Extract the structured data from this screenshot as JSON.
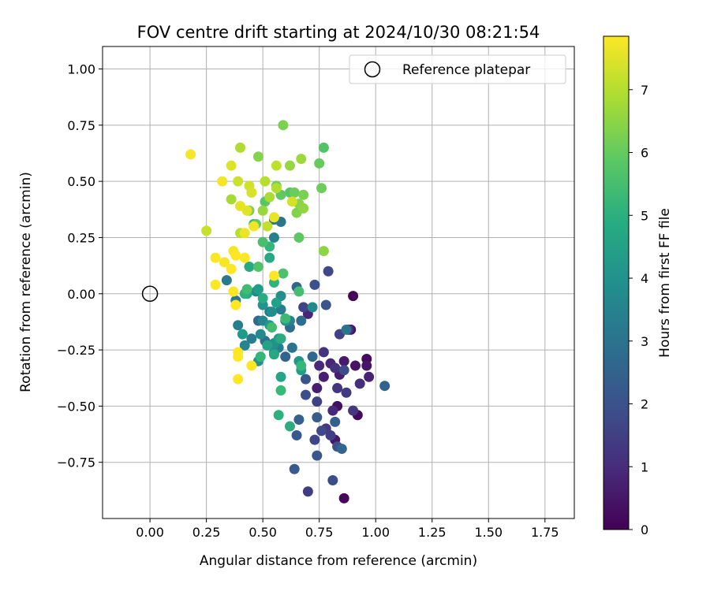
{
  "chart_data": {
    "type": "scatter",
    "title": "FOV centre drift starting at 2024/10/30 08:21:54",
    "xlabel": "Angular distance from reference (arcmin)",
    "ylabel": "Rotation from reference (arcmin)",
    "xlim": [
      -0.21,
      1.88
    ],
    "ylim": [
      -1.0,
      1.1
    ],
    "xticks": [
      "0.00",
      "0.25",
      "0.50",
      "0.75",
      "1.00",
      "1.25",
      "1.50",
      "1.75"
    ],
    "yticks": [
      "−0.75",
      "−0.50",
      "−0.25",
      "0.00",
      "0.25",
      "0.50",
      "0.75",
      "1.00"
    ],
    "grid": true,
    "legend_position": "top-right",
    "legend": [
      {
        "label": "Reference platepar",
        "marker": "open-circle"
      }
    ],
    "reference_point": {
      "x": 0.0,
      "y": 0.0
    },
    "colorbar": {
      "label": "Hours from first FF file",
      "colormap": "viridis",
      "min": 0,
      "max": 7.85,
      "ticks": [
        "0",
        "1",
        "2",
        "3",
        "4",
        "5",
        "6",
        "7"
      ]
    },
    "points": [
      {
        "x": 0.9,
        "y": -0.01,
        "h": 0.1
      },
      {
        "x": 0.86,
        "y": -0.91,
        "h": 0.15
      },
      {
        "x": 0.92,
        "y": -0.54,
        "h": 0.2
      },
      {
        "x": 0.96,
        "y": -0.29,
        "h": 0.25
      },
      {
        "x": 0.83,
        "y": -0.5,
        "h": 0.3
      },
      {
        "x": 0.89,
        "y": -0.16,
        "h": 0.35
      },
      {
        "x": 0.91,
        "y": -0.32,
        "h": 0.4
      },
      {
        "x": 0.96,
        "y": -0.32,
        "h": 0.45
      },
      {
        "x": 0.82,
        "y": -0.65,
        "h": 0.5
      },
      {
        "x": 0.86,
        "y": -0.3,
        "h": 0.55
      },
      {
        "x": 0.84,
        "y": -0.36,
        "h": 0.6
      },
      {
        "x": 0.74,
        "y": -0.42,
        "h": 0.65
      },
      {
        "x": 0.77,
        "y": -0.37,
        "h": 0.7
      },
      {
        "x": 0.97,
        "y": -0.37,
        "h": 0.75
      },
      {
        "x": 0.7,
        "y": -0.09,
        "h": 0.8
      },
      {
        "x": 0.8,
        "y": -0.31,
        "h": 0.85
      },
      {
        "x": 0.81,
        "y": -0.52,
        "h": 0.9
      },
      {
        "x": 0.75,
        "y": -0.32,
        "h": 0.95
      },
      {
        "x": 0.88,
        "y": -0.16,
        "h": 1.0
      },
      {
        "x": 0.93,
        "y": -0.4,
        "h": 1.05
      },
      {
        "x": 0.82,
        "y": -0.33,
        "h": 1.1
      },
      {
        "x": 0.77,
        "y": -0.26,
        "h": 1.15
      },
      {
        "x": 0.83,
        "y": -0.42,
        "h": 1.2
      },
      {
        "x": 0.9,
        "y": -0.52,
        "h": 1.25
      },
      {
        "x": 0.78,
        "y": -0.6,
        "h": 1.3
      },
      {
        "x": 0.87,
        "y": -0.44,
        "h": 1.35
      },
      {
        "x": 0.7,
        "y": -0.88,
        "h": 1.4
      },
      {
        "x": 0.8,
        "y": -0.63,
        "h": 1.45
      },
      {
        "x": 0.74,
        "y": -0.48,
        "h": 1.5
      },
      {
        "x": 0.84,
        "y": -0.18,
        "h": 1.55
      },
      {
        "x": 0.68,
        "y": -0.06,
        "h": 1.6
      },
      {
        "x": 0.73,
        "y": -0.65,
        "h": 1.65
      },
      {
        "x": 0.79,
        "y": 0.1,
        "h": 1.7
      },
      {
        "x": 0.76,
        "y": -0.61,
        "h": 1.75
      },
      {
        "x": 0.86,
        "y": -0.34,
        "h": 1.8
      },
      {
        "x": 0.81,
        "y": -0.83,
        "h": 1.85
      },
      {
        "x": 0.69,
        "y": -0.45,
        "h": 1.9
      },
      {
        "x": 0.73,
        "y": 0.04,
        "h": 1.95
      },
      {
        "x": 0.83,
        "y": -0.68,
        "h": 2.0
      },
      {
        "x": 0.78,
        "y": -0.05,
        "h": 2.05
      },
      {
        "x": 0.69,
        "y": -0.38,
        "h": 2.1
      },
      {
        "x": 0.74,
        "y": -0.72,
        "h": 2.15
      },
      {
        "x": 0.65,
        "y": -0.63,
        "h": 2.2
      },
      {
        "x": 0.64,
        "y": -0.78,
        "h": 2.25
      },
      {
        "x": 0.74,
        "y": -0.55,
        "h": 2.3
      },
      {
        "x": 0.82,
        "y": -0.57,
        "h": 2.35
      },
      {
        "x": 0.66,
        "y": -0.56,
        "h": 2.4
      },
      {
        "x": 1.04,
        "y": -0.41,
        "h": 2.45
      },
      {
        "x": 0.6,
        "y": -0.28,
        "h": 2.5
      },
      {
        "x": 0.85,
        "y": -0.69,
        "h": 2.55
      },
      {
        "x": 0.65,
        "y": 0.03,
        "h": 2.6
      },
      {
        "x": 0.72,
        "y": -0.28,
        "h": 2.65
      },
      {
        "x": 0.48,
        "y": -0.12,
        "h": 2.7
      },
      {
        "x": 0.62,
        "y": -0.15,
        "h": 2.75
      },
      {
        "x": 0.67,
        "y": -0.12,
        "h": 2.8
      },
      {
        "x": 0.51,
        "y": -0.21,
        "h": 2.85
      },
      {
        "x": 0.55,
        "y": 0.33,
        "h": 2.9
      },
      {
        "x": 0.63,
        "y": -0.24,
        "h": 2.95
      },
      {
        "x": 0.87,
        "y": -0.16,
        "h": 3.0
      },
      {
        "x": 0.58,
        "y": 0.32,
        "h": 3.05
      },
      {
        "x": 0.38,
        "y": -0.03,
        "h": 3.1
      },
      {
        "x": 0.53,
        "y": -0.08,
        "h": 3.15
      },
      {
        "x": 0.34,
        "y": 0.06,
        "h": 3.2
      },
      {
        "x": 0.58,
        "y": -0.07,
        "h": 3.25
      },
      {
        "x": 0.45,
        "y": -0.2,
        "h": 3.3
      },
      {
        "x": 0.57,
        "y": -0.24,
        "h": 3.35
      },
      {
        "x": 0.39,
        "y": -0.14,
        "h": 3.4
      },
      {
        "x": 0.55,
        "y": 0.25,
        "h": 3.45
      },
      {
        "x": 0.62,
        "y": -0.12,
        "h": 3.5
      },
      {
        "x": 0.42,
        "y": -0.23,
        "h": 3.55
      },
      {
        "x": 0.5,
        "y": -0.12,
        "h": 3.6
      },
      {
        "x": 0.47,
        "y": 0.01,
        "h": 3.65
      },
      {
        "x": 0.72,
        "y": -0.06,
        "h": 3.7
      },
      {
        "x": 0.49,
        "y": -0.18,
        "h": 3.75
      },
      {
        "x": 0.55,
        "y": -0.26,
        "h": 3.8
      },
      {
        "x": 0.58,
        "y": -0.01,
        "h": 3.85
      },
      {
        "x": 0.54,
        "y": -0.08,
        "h": 3.9
      },
      {
        "x": 0.55,
        "y": -0.22,
        "h": 3.95
      },
      {
        "x": 0.48,
        "y": -0.3,
        "h": 4.0
      },
      {
        "x": 0.5,
        "y": -0.05,
        "h": 4.05
      },
      {
        "x": 0.6,
        "y": -0.12,
        "h": 4.1
      },
      {
        "x": 0.66,
        "y": -0.3,
        "h": 4.15
      },
      {
        "x": 0.53,
        "y": -0.14,
        "h": 4.2
      },
      {
        "x": 0.57,
        "y": -0.2,
        "h": 4.25
      },
      {
        "x": 0.41,
        "y": -0.18,
        "h": 4.3
      },
      {
        "x": 0.67,
        "y": -0.34,
        "h": 4.35
      },
      {
        "x": 0.48,
        "y": 0.02,
        "h": 4.4
      },
      {
        "x": 0.56,
        "y": -0.04,
        "h": 4.45
      },
      {
        "x": 0.52,
        "y": -0.23,
        "h": 4.5
      },
      {
        "x": 0.43,
        "y": 0.0,
        "h": 4.55
      },
      {
        "x": 0.58,
        "y": -0.37,
        "h": 4.6
      },
      {
        "x": 0.55,
        "y": -0.27,
        "h": 4.65
      },
      {
        "x": 0.53,
        "y": 0.16,
        "h": 4.7
      },
      {
        "x": 0.44,
        "y": 0.12,
        "h": 4.75
      },
      {
        "x": 0.5,
        "y": -0.02,
        "h": 4.8
      },
      {
        "x": 0.58,
        "y": -0.2,
        "h": 4.85
      },
      {
        "x": 0.62,
        "y": -0.59,
        "h": 4.9
      },
      {
        "x": 0.57,
        "y": -0.54,
        "h": 4.95
      },
      {
        "x": 0.42,
        "y": 0.0,
        "h": 5.0
      },
      {
        "x": 0.46,
        "y": 0.31,
        "h": 5.05
      },
      {
        "x": 0.55,
        "y": 0.05,
        "h": 5.1
      },
      {
        "x": 0.53,
        "y": 0.21,
        "h": 5.15
      },
      {
        "x": 0.49,
        "y": -0.28,
        "h": 5.2
      },
      {
        "x": 0.67,
        "y": -0.32,
        "h": 5.25
      },
      {
        "x": 0.58,
        "y": -0.43,
        "h": 5.3
      },
      {
        "x": 0.6,
        "y": -0.11,
        "h": 5.35
      },
      {
        "x": 0.43,
        "y": 0.02,
        "h": 5.4
      },
      {
        "x": 0.54,
        "y": -0.15,
        "h": 5.45
      },
      {
        "x": 0.66,
        "y": 0.01,
        "h": 5.5
      },
      {
        "x": 0.5,
        "y": 0.23,
        "h": 5.55
      },
      {
        "x": 0.59,
        "y": 0.09,
        "h": 5.6
      },
      {
        "x": 0.48,
        "y": 0.12,
        "h": 5.65
      },
      {
        "x": 0.77,
        "y": 0.65,
        "h": 5.7
      },
      {
        "x": 0.62,
        "y": 0.45,
        "h": 5.75
      },
      {
        "x": 0.51,
        "y": 0.41,
        "h": 5.8
      },
      {
        "x": 0.66,
        "y": 0.25,
        "h": 5.85
      },
      {
        "x": 0.58,
        "y": 0.44,
        "h": 5.9
      },
      {
        "x": 0.47,
        "y": 0.31,
        "h": 5.95
      },
      {
        "x": 0.75,
        "y": 0.58,
        "h": 6.0
      },
      {
        "x": 0.64,
        "y": 0.45,
        "h": 6.05
      },
      {
        "x": 0.76,
        "y": 0.47,
        "h": 6.1
      },
      {
        "x": 0.56,
        "y": 0.48,
        "h": 6.15
      },
      {
        "x": 0.44,
        "y": 0.37,
        "h": 6.2
      },
      {
        "x": 0.68,
        "y": 0.44,
        "h": 6.25
      },
      {
        "x": 0.59,
        "y": 0.75,
        "h": 6.3
      },
      {
        "x": 0.65,
        "y": 0.36,
        "h": 6.35
      },
      {
        "x": 0.48,
        "y": 0.61,
        "h": 6.4
      },
      {
        "x": 0.66,
        "y": 0.4,
        "h": 6.45
      },
      {
        "x": 0.77,
        "y": 0.19,
        "h": 6.5
      },
      {
        "x": 0.68,
        "y": 0.38,
        "h": 6.55
      },
      {
        "x": 0.62,
        "y": 0.57,
        "h": 6.6
      },
      {
        "x": 0.5,
        "y": 0.37,
        "h": 6.65
      },
      {
        "x": 0.67,
        "y": 0.6,
        "h": 6.7
      },
      {
        "x": 0.36,
        "y": 0.42,
        "h": 6.8
      },
      {
        "x": 0.53,
        "y": 0.43,
        "h": 6.85
      },
      {
        "x": 0.4,
        "y": 0.65,
        "h": 6.9
      },
      {
        "x": 0.56,
        "y": 0.47,
        "h": 6.95
      },
      {
        "x": 0.51,
        "y": 0.5,
        "h": 7.0
      },
      {
        "x": 0.4,
        "y": 0.27,
        "h": 7.05
      },
      {
        "x": 0.56,
        "y": 0.57,
        "h": 7.1
      },
      {
        "x": 0.52,
        "y": 0.3,
        "h": 7.15
      },
      {
        "x": 0.25,
        "y": 0.28,
        "h": 7.2
      },
      {
        "x": 0.39,
        "y": 0.5,
        "h": 7.25
      },
      {
        "x": 0.44,
        "y": 0.48,
        "h": 7.3
      },
      {
        "x": 0.63,
        "y": 0.41,
        "h": 7.35
      },
      {
        "x": 0.45,
        "y": 0.45,
        "h": 7.4
      },
      {
        "x": 0.36,
        "y": 0.57,
        "h": 7.45
      },
      {
        "x": 0.43,
        "y": 0.37,
        "h": 7.5
      },
      {
        "x": 0.4,
        "y": 0.39,
        "h": 7.55
      },
      {
        "x": 0.55,
        "y": 0.34,
        "h": 7.6
      },
      {
        "x": 0.42,
        "y": 0.27,
        "h": 7.65
      },
      {
        "x": 0.46,
        "y": 0.3,
        "h": 7.7
      },
      {
        "x": 0.37,
        "y": 0.19,
        "h": 7.72
      },
      {
        "x": 0.32,
        "y": 0.5,
        "h": 7.74
      },
      {
        "x": 0.18,
        "y": 0.62,
        "h": 7.76
      },
      {
        "x": 0.33,
        "y": 0.14,
        "h": 7.78
      },
      {
        "x": 0.29,
        "y": 0.16,
        "h": 7.8
      },
      {
        "x": 0.29,
        "y": 0.04,
        "h": 7.82
      },
      {
        "x": 0.38,
        "y": -0.05,
        "h": 7.84
      },
      {
        "x": 0.39,
        "y": -0.38,
        "h": 7.85
      },
      {
        "x": 0.37,
        "y": 0.01,
        "h": 7.86
      },
      {
        "x": 0.45,
        "y": -0.32,
        "h": 7.87
      },
      {
        "x": 0.39,
        "y": -0.26,
        "h": 7.88
      },
      {
        "x": 0.39,
        "y": -0.28,
        "h": 7.88
      },
      {
        "x": 0.36,
        "y": 0.11,
        "h": 7.89
      },
      {
        "x": 0.42,
        "y": 0.16,
        "h": 7.89
      },
      {
        "x": 0.38,
        "y": 0.17,
        "h": 7.9
      },
      {
        "x": 0.55,
        "y": 0.08,
        "h": 7.9
      }
    ]
  }
}
